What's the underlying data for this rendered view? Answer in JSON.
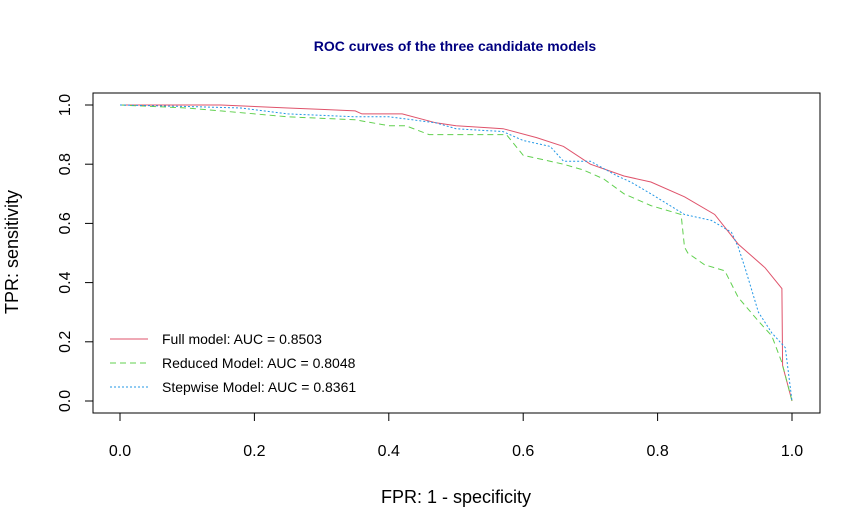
{
  "chart_data": {
    "type": "line",
    "title": "ROC curves of the three candidate models",
    "xlabel": "FPR: 1 - specificity",
    "ylabel": "TPR: sensitivity",
    "xlim": [
      0,
      1
    ],
    "ylim": [
      0,
      1
    ],
    "xticks": [
      "0.0",
      "0.2",
      "0.4",
      "0.6",
      "0.8",
      "1.0"
    ],
    "yticks": [
      "0.0",
      "0.2",
      "0.4",
      "0.6",
      "0.8",
      "1.0"
    ],
    "legend_position": "bottom-left",
    "grid": false,
    "series": [
      {
        "name": "Full model: AUC =  0.8503",
        "color": "#DF536B",
        "dash": "solid",
        "x": [
          0.0,
          0.1,
          0.15,
          0.25,
          0.3,
          0.35,
          0.36,
          0.42,
          0.47,
          0.5,
          0.57,
          0.62,
          0.66,
          0.7,
          0.75,
          0.79,
          0.84,
          0.885,
          0.92,
          0.96,
          0.985,
          0.986,
          1.0
        ],
        "y": [
          1.0,
          1.0,
          1.0,
          0.99,
          0.985,
          0.98,
          0.97,
          0.97,
          0.94,
          0.93,
          0.92,
          0.89,
          0.86,
          0.8,
          0.76,
          0.74,
          0.69,
          0.63,
          0.53,
          0.45,
          0.38,
          0.12,
          0.0
        ]
      },
      {
        "name": "Reduced Model: AUC = 0.8048",
        "color": "#61D04F",
        "dash": "dashed",
        "x": [
          0.0,
          0.05,
          0.1,
          0.15,
          0.25,
          0.35,
          0.4,
          0.425,
          0.46,
          0.5,
          0.575,
          0.6,
          0.66,
          0.69,
          0.72,
          0.75,
          0.79,
          0.835,
          0.84,
          0.845,
          0.87,
          0.9,
          0.92,
          0.95,
          0.97,
          0.985,
          1.0
        ],
        "y": [
          1.0,
          0.995,
          0.99,
          0.98,
          0.96,
          0.95,
          0.93,
          0.93,
          0.9,
          0.9,
          0.9,
          0.83,
          0.8,
          0.78,
          0.75,
          0.7,
          0.66,
          0.63,
          0.52,
          0.5,
          0.46,
          0.44,
          0.35,
          0.27,
          0.22,
          0.13,
          0.0
        ]
      },
      {
        "name": "Stepwise Model: AUC = 0.8361",
        "color": "#2297E6",
        "dash": "dotted",
        "x": [
          0.0,
          0.1,
          0.18,
          0.25,
          0.35,
          0.4,
          0.47,
          0.5,
          0.57,
          0.6,
          0.64,
          0.66,
          0.7,
          0.74,
          0.76,
          0.79,
          0.84,
          0.88,
          0.91,
          0.92,
          0.93,
          0.95,
          0.97,
          0.99,
          1.0
        ],
        "y": [
          1.0,
          0.995,
          0.99,
          0.97,
          0.96,
          0.96,
          0.94,
          0.92,
          0.91,
          0.88,
          0.86,
          0.81,
          0.81,
          0.76,
          0.74,
          0.7,
          0.63,
          0.61,
          0.57,
          0.52,
          0.45,
          0.3,
          0.23,
          0.18,
          0.0
        ]
      }
    ]
  }
}
